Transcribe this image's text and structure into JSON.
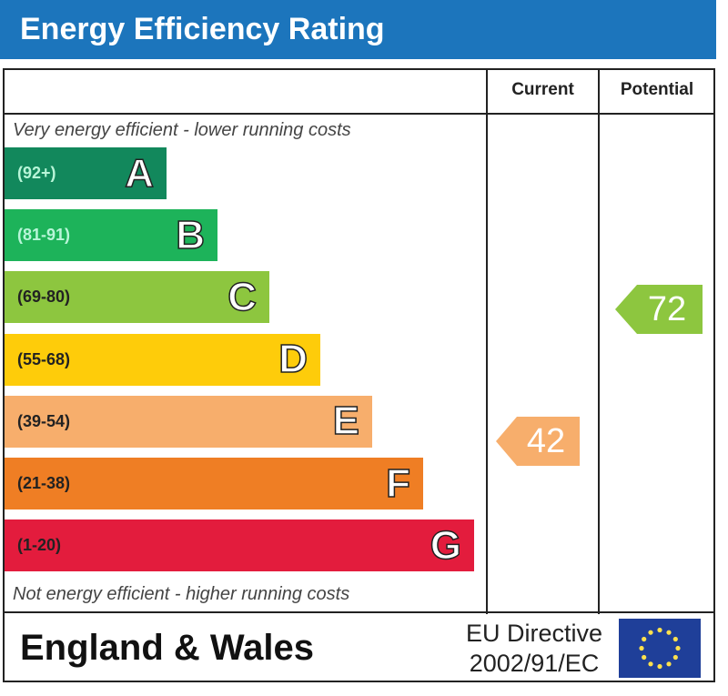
{
  "title": "Energy Efficiency Rating",
  "headers": {
    "current": "Current",
    "potential": "Potential"
  },
  "notes": {
    "top": "Very energy efficient - lower running costs",
    "bottom": "Not energy efficient - higher running costs"
  },
  "footer": {
    "region": "England & Wales",
    "directive_line1": "EU Directive",
    "directive_line2": "2002/91/EC"
  },
  "chart_data": {
    "type": "bar",
    "title": "Energy Efficiency Rating",
    "categories": [
      "A",
      "B",
      "C",
      "D",
      "E",
      "F",
      "G"
    ],
    "ranges": [
      "(92+)",
      "(81-91)",
      "(69-80)",
      "(55-68)",
      "(39-54)",
      "(21-38)",
      "(1-20)"
    ],
    "colors": [
      "#12885c",
      "#1db35a",
      "#8dc63f",
      "#fecc0a",
      "#f7ae6c",
      "#ef7e24",
      "#e31c3d"
    ],
    "current": {
      "value": 42,
      "band": "E",
      "color": "#f7ae6c"
    },
    "potential": {
      "value": 72,
      "band": "C",
      "color": "#8dc63f"
    }
  }
}
